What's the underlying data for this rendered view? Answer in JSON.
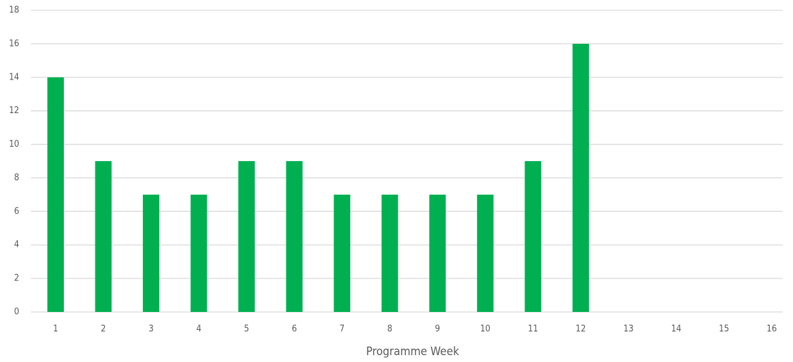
{
  "chart_data": {
    "type": "bar",
    "x_label": "Programme Week",
    "categories": [
      "1",
      "2",
      "3",
      "4",
      "5",
      "6",
      "7",
      "8",
      "9",
      "10",
      "11",
      "12",
      "13",
      "14",
      "15",
      "16"
    ],
    "values": [
      14,
      9,
      7,
      7,
      9,
      9,
      7,
      7,
      7,
      7,
      9,
      16,
      null,
      null,
      null,
      null
    ],
    "color": "#00b050",
    "ylim": [
      0,
      18
    ],
    "yticks": [
      0,
      2,
      4,
      6,
      8,
      10,
      12,
      14,
      16,
      18
    ],
    "grid": true
  }
}
